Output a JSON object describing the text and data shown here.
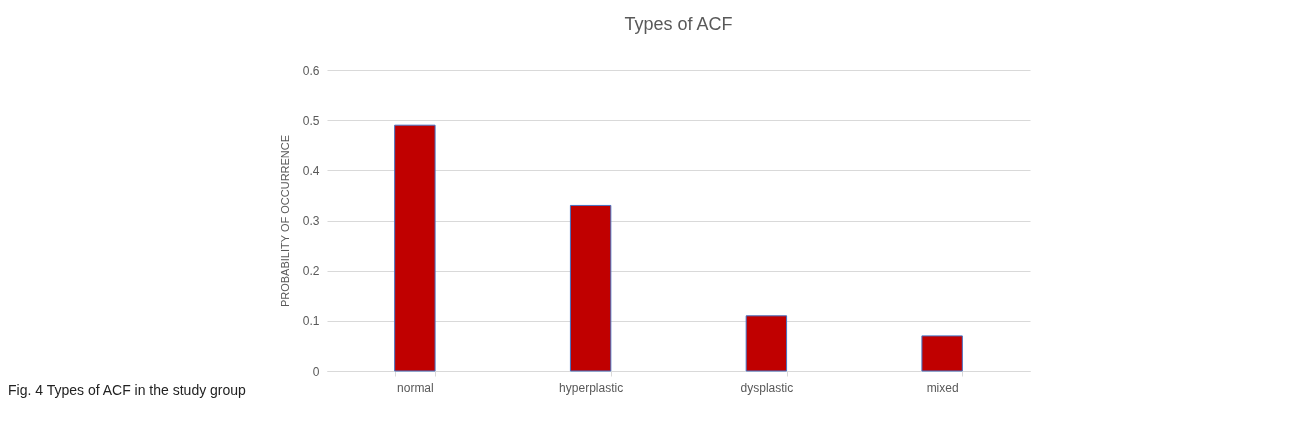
{
  "chart_data": {
    "type": "bar",
    "title": "Types of ACF",
    "ylabel": "PROBABILITY OF OCCURRENCE",
    "categories": [
      "normal",
      "hyperplastic",
      "dysplastic",
      "mixed"
    ],
    "values": [
      0.49,
      0.33,
      0.11,
      0.07
    ],
    "color": "#c00000",
    "ylim": [
      0,
      0.6
    ],
    "yticks": [
      0,
      0.1,
      0.2,
      0.3,
      0.4,
      0.5,
      0.6
    ],
    "grid": "y",
    "annotations": [
      "Fig. 4 Types of ACF in the study group"
    ]
  }
}
